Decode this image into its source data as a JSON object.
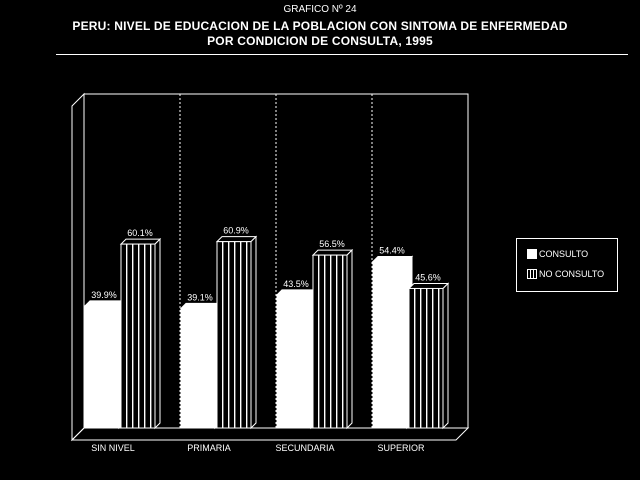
{
  "header": {
    "chart_number": "GRAFICO Nº 24",
    "title_line1": "PERU: NIVEL DE EDUCACION DE LA POBLACION CON SINTOMA DE ENFERMEDAD",
    "title_line2": "POR CONDICION DE CONSULTA, 1995"
  },
  "chart_data": {
    "type": "bar",
    "title": "PERU: NIVEL DE EDUCACION DE LA POBLACION CON SINTOMA DE ENFERMEDAD POR CONDICION DE CONSULTA, 1995",
    "categories": [
      "SIN NIVEL",
      "PRIMARIA",
      "SECUNDARIA",
      "SUPERIOR"
    ],
    "series": [
      {
        "name": "CONSULTO",
        "values": [
          39.9,
          39.1,
          43.5,
          54.4
        ],
        "labels": [
          "39.9%",
          "39.1%",
          "43.5%",
          "54.4%"
        ],
        "fill": "solid"
      },
      {
        "name": "NO CONSULTO",
        "values": [
          60.1,
          60.9,
          56.5,
          45.6
        ],
        "labels": [
          "60.1%",
          "60.9%",
          "56.5%",
          "45.6%"
        ],
        "fill": "vertical-stripes"
      }
    ],
    "ylim": [
      0,
      100
    ],
    "style": "3d",
    "category_separators": "dotted",
    "legend_position": "right",
    "colors": {
      "background": "#000000",
      "bar_fill": "#ffffff",
      "outline": "#ffffff"
    }
  }
}
